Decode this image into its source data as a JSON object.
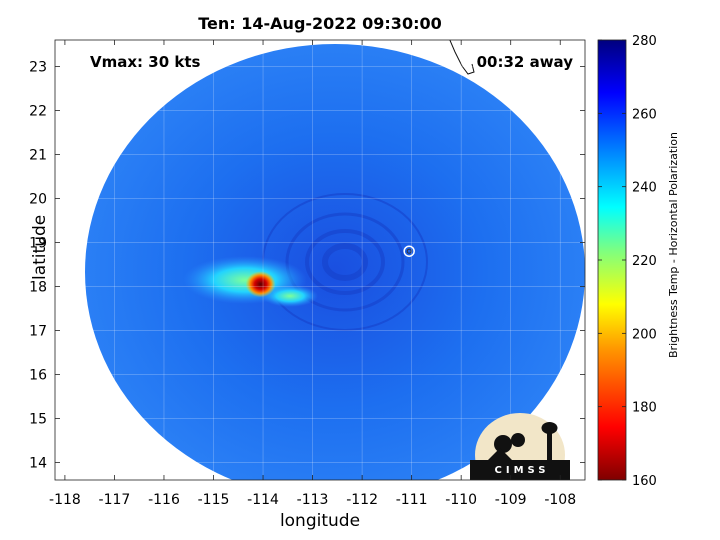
{
  "chart_data": {
    "type": "heatmap",
    "title": "Ten: 14-Aug-2022 09:30:00",
    "xlabel": "longitude",
    "ylabel": "latitude",
    "xlim": [
      -118.2,
      -107.5
    ],
    "ylim": [
      13.6,
      23.6
    ],
    "xticks": [
      -118,
      -117,
      -116,
      -115,
      -114,
      -113,
      -112,
      -111,
      -110,
      -109,
      -108
    ],
    "yticks": [
      14,
      15,
      16,
      17,
      18,
      19,
      20,
      21,
      22,
      23
    ],
    "grid": true,
    "annotations": {
      "vmax": "Vmax: 30 kts",
      "away": "00:32 away"
    },
    "colorbar": {
      "label": "Brightness Temp - Horizontal Polarization",
      "min": 160,
      "max": 280,
      "ticks": [
        160,
        180,
        200,
        220,
        240,
        260,
        280
      ]
    },
    "swath_center": {
      "lon": -112.8,
      "lat": 18.6
    },
    "storm_marker": {
      "lon": -111.05,
      "lat": 18.8
    },
    "cold_spot": {
      "lon": -114.05,
      "lat": 18.05
    },
    "logo": "CIMSS",
    "colors": {
      "background": "#1c6cf2",
      "cold_core": "#8b0000",
      "outside": "#ffffff"
    }
  }
}
